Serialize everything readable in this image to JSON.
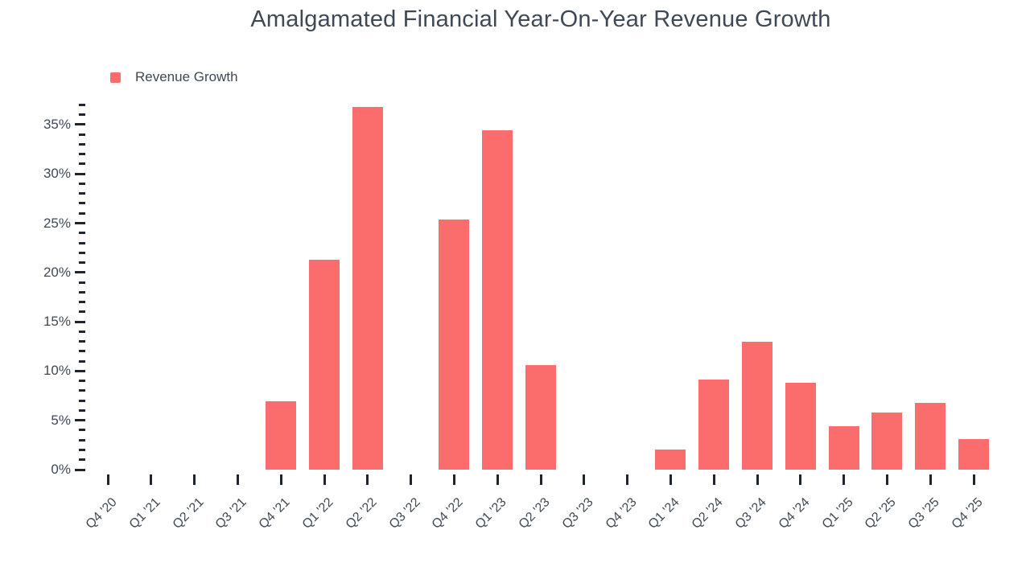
{
  "header": {
    "title": "Amalgamated Financial Year-On-Year Revenue Growth"
  },
  "legend": {
    "label": "Revenue Growth",
    "marker_color": "#fb6c6c",
    "position": "top-left"
  },
  "colors": {
    "bar": "#fb6c6c",
    "text": "#3e4956",
    "tick": "#20252d",
    "background": "#ffffff"
  },
  "chart_data": {
    "type": "bar",
    "title": "Amalgamated Financial Year-On-Year Revenue Growth",
    "xlabel": "",
    "ylabel": "",
    "unit": "%",
    "grid": false,
    "legend_position": "top-left",
    "ylim": [
      0,
      37
    ],
    "y_axis": {
      "major_tick_step": 5,
      "minor_tick_step": 1,
      "tick_max": 37,
      "tick_labels": [
        "0%",
        "5%",
        "10%",
        "15%",
        "20%",
        "25%",
        "30%",
        "35%"
      ]
    },
    "categories": [
      "Q4 '20",
      "Q1 '21",
      "Q2 '21",
      "Q3 '21",
      "Q4 '21",
      "Q1 '22",
      "Q2 '22",
      "Q3 '22",
      "Q4 '22",
      "Q1 '23",
      "Q2 '23",
      "Q3 '23",
      "Q4 '23",
      "Q1 '24",
      "Q2 '24",
      "Q3 '24",
      "Q4 '24",
      "Q1 '25",
      "Q2 '25",
      "Q3 '25",
      "Q4 '25"
    ],
    "series": [
      {
        "name": "Revenue Growth",
        "values": [
          null,
          null,
          null,
          null,
          6.9,
          21.3,
          36.8,
          null,
          25.4,
          34.4,
          10.6,
          null,
          null,
          2.0,
          9.1,
          13.0,
          8.8,
          4.4,
          5.8,
          6.8,
          3.1
        ]
      }
    ]
  }
}
